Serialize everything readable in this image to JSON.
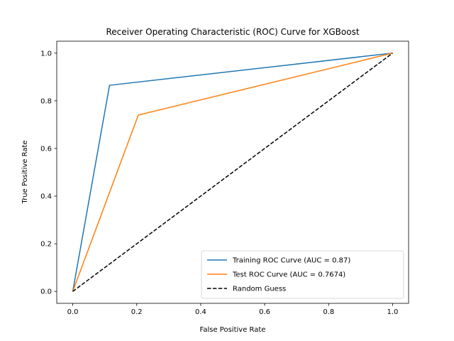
{
  "chart_data": {
    "type": "line",
    "title": "Receiver Operating Characteristic (ROC) Curve for XGBoost",
    "xlabel": "False Positive Rate",
    "ylabel": "True Positive Rate",
    "xlim": [
      -0.05,
      1.05
    ],
    "ylim": [
      -0.05,
      1.05
    ],
    "xticks": [
      0.0,
      0.2,
      0.4,
      0.6,
      0.8,
      1.0
    ],
    "yticks": [
      0.0,
      0.2,
      0.4,
      0.6,
      0.8,
      1.0
    ],
    "xtick_labels": [
      "0.0",
      "0.2",
      "0.4",
      "0.6",
      "0.8",
      "1.0"
    ],
    "ytick_labels": [
      "0.0",
      "0.2",
      "0.4",
      "0.6",
      "0.8",
      "1.0"
    ],
    "grid": false,
    "legend_position": "lower-right",
    "series": [
      {
        "name": "Training ROC Curve (AUC = 0.87)",
        "color": "#1f77b4",
        "dash": "solid",
        "x": [
          0.0,
          0.115,
          1.0
        ],
        "y": [
          0.0,
          0.865,
          1.0
        ]
      },
      {
        "name": "Test ROC Curve (AUC = 0.7674)",
        "color": "#ff7f0e",
        "dash": "solid",
        "x": [
          0.0,
          0.205,
          1.0
        ],
        "y": [
          0.0,
          0.74,
          1.0
        ]
      },
      {
        "name": "Random Guess",
        "color": "#000000",
        "dash": "dashed",
        "x": [
          0.0,
          1.0
        ],
        "y": [
          0.0,
          1.0
        ]
      }
    ]
  }
}
